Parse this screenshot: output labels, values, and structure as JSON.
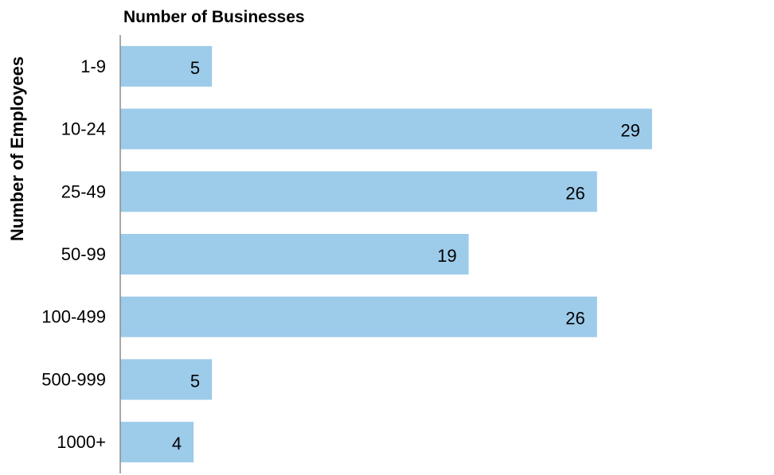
{
  "chart_data": {
    "type": "bar",
    "orientation": "horizontal",
    "xlabel": "Number of Businesses",
    "ylabel": "Number of Employees",
    "categories": [
      "1-9",
      "10-24",
      "25-49",
      "50-99",
      "100-499",
      "500-999",
      "1000+"
    ],
    "values": [
      5,
      29,
      26,
      19,
      26,
      5,
      4
    ],
    "data_labels": [
      "5",
      "29",
      "26",
      "19",
      "26",
      "5",
      "4"
    ],
    "xlim": [
      0,
      30
    ],
    "grid": false,
    "legend": "none",
    "colors": {
      "bar": "#9dcbea",
      "axis": "#8c8c8c",
      "text": "#000000"
    }
  }
}
